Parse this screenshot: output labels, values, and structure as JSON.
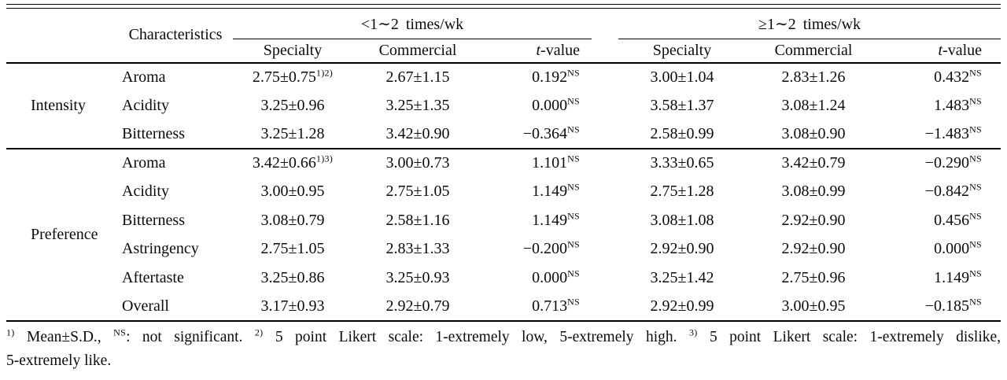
{
  "table": {
    "characteristics_header": "Characteristics",
    "t_value_italic": "t",
    "t_value_rest": "-value",
    "groups": [
      {
        "label": "<1∼2 times/wk",
        "columns": [
          "Specialty",
          "Commercial",
          "t-value"
        ]
      },
      {
        "label": "≥1∼2 times/wk",
        "columns": [
          "Specialty",
          "Commercial",
          "t-value"
        ]
      }
    ],
    "sections": [
      {
        "label": "Intensity",
        "rows": [
          {
            "characteristic": "Aroma",
            "cells": [
              {
                "v": "2.75±0.75",
                "s": "1)2)"
              },
              {
                "v": "2.67±1.15",
                "s": ""
              },
              {
                "v": "0.192",
                "s": "NS"
              },
              {
                "v": "3.00±1.04",
                "s": ""
              },
              {
                "v": "2.83±1.26",
                "s": ""
              },
              {
                "v": "0.432",
                "s": "NS"
              }
            ]
          },
          {
            "characteristic": "Acidity",
            "cells": [
              {
                "v": "3.25±0.96",
                "s": ""
              },
              {
                "v": "3.25±1.35",
                "s": ""
              },
              {
                "v": "0.000",
                "s": "NS"
              },
              {
                "v": "3.58±1.37",
                "s": ""
              },
              {
                "v": "3.08±1.24",
                "s": ""
              },
              {
                "v": "1.483",
                "s": "NS"
              }
            ]
          },
          {
            "characteristic": "Bitterness",
            "cells": [
              {
                "v": "3.25±1.28",
                "s": ""
              },
              {
                "v": "3.42±0.90",
                "s": ""
              },
              {
                "v": "−0.364",
                "s": "NS"
              },
              {
                "v": "2.58±0.99",
                "s": ""
              },
              {
                "v": "3.08±0.90",
                "s": ""
              },
              {
                "v": "−1.483",
                "s": "NS"
              }
            ]
          }
        ]
      },
      {
        "label": "Preference",
        "rows": [
          {
            "characteristic": "Aroma",
            "cells": [
              {
                "v": "3.42±0.66",
                "s": "1)3)"
              },
              {
                "v": "3.00±0.73",
                "s": ""
              },
              {
                "v": "1.101",
                "s": "NS"
              },
              {
                "v": "3.33±0.65",
                "s": ""
              },
              {
                "v": "3.42±0.79",
                "s": ""
              },
              {
                "v": "−0.290",
                "s": "NS"
              }
            ]
          },
          {
            "characteristic": "Acidity",
            "cells": [
              {
                "v": "3.00±0.95",
                "s": ""
              },
              {
                "v": "2.75±1.05",
                "s": ""
              },
              {
                "v": "1.149",
                "s": "NS"
              },
              {
                "v": "2.75±1.28",
                "s": ""
              },
              {
                "v": "3.08±0.99",
                "s": ""
              },
              {
                "v": "−0.842",
                "s": "NS"
              }
            ]
          },
          {
            "characteristic": "Bitterness",
            "cells": [
              {
                "v": "3.08±0.79",
                "s": ""
              },
              {
                "v": "2.58±1.16",
                "s": ""
              },
              {
                "v": "1.149",
                "s": "NS"
              },
              {
                "v": "3.08±1.08",
                "s": ""
              },
              {
                "v": "2.92±0.90",
                "s": ""
              },
              {
                "v": "0.456",
                "s": "NS"
              }
            ]
          },
          {
            "characteristic": "Astringency",
            "cells": [
              {
                "v": "2.75±1.05",
                "s": ""
              },
              {
                "v": "2.83±1.33",
                "s": ""
              },
              {
                "v": "−0.200",
                "s": "NS"
              },
              {
                "v": "2.92±0.90",
                "s": ""
              },
              {
                "v": "2.92±0.90",
                "s": ""
              },
              {
                "v": "0.000",
                "s": "NS"
              }
            ]
          },
          {
            "characteristic": "Aftertaste",
            "cells": [
              {
                "v": "3.25±0.86",
                "s": ""
              },
              {
                "v": "3.25±0.93",
                "s": ""
              },
              {
                "v": "0.000",
                "s": "NS"
              },
              {
                "v": "3.25±1.42",
                "s": ""
              },
              {
                "v": "2.75±0.96",
                "s": ""
              },
              {
                "v": "1.149",
                "s": "NS"
              }
            ]
          },
          {
            "characteristic": "Overall",
            "cells": [
              {
                "v": "3.17±0.93",
                "s": ""
              },
              {
                "v": "2.92±0.79",
                "s": ""
              },
              {
                "v": "0.713",
                "s": "NS"
              },
              {
                "v": "2.92±0.99",
                "s": ""
              },
              {
                "v": "3.00±0.95",
                "s": ""
              },
              {
                "v": "−0.185",
                "s": "NS"
              }
            ]
          }
        ]
      }
    ]
  },
  "footnote": {
    "line1_segments": [
      {
        "s": "1)"
      },
      {
        "t": " Mean±S.D., "
      },
      {
        "s": "NS"
      },
      {
        "t": ": not significant. "
      },
      {
        "s": "2)"
      },
      {
        "t": " 5 point Likert scale: 1-extremely low, 5-extremely high. "
      },
      {
        "s": "3)"
      },
      {
        "t": " 5 point Likert scale: 1-extremely dislike,"
      }
    ],
    "line2": "5-extremely like."
  }
}
